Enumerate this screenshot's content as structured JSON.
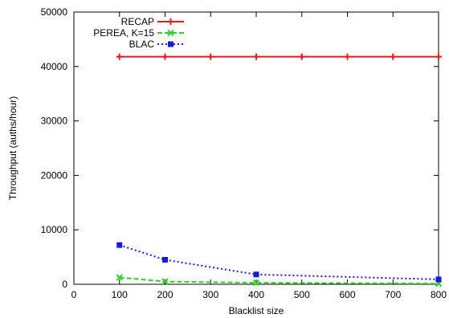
{
  "chart_data": {
    "type": "line",
    "title": "",
    "xlabel": "Blacklist size",
    "ylabel": "Throughput (auths/hour)",
    "xlim": [
      0,
      800
    ],
    "ylim": [
      0,
      50000
    ],
    "x_ticks": [
      0,
      100,
      200,
      300,
      400,
      500,
      600,
      700,
      800
    ],
    "y_ticks": [
      0,
      10000,
      20000,
      30000,
      40000,
      50000
    ],
    "grid": false,
    "legend_position": "top-left",
    "series": [
      {
        "name": "RECAP",
        "color": "#e41a1c",
        "line_style": "solid",
        "marker": "plus",
        "x": [
          100,
          200,
          300,
          400,
          500,
          600,
          700,
          800
        ],
        "y": [
          41800,
          41800,
          41800,
          41800,
          41800,
          41800,
          41800,
          41800
        ]
      },
      {
        "name": "PEREA, K=15",
        "color": "#33cc33",
        "line_style": "dashed",
        "marker": "x",
        "x": [
          100,
          200,
          400,
          800
        ],
        "y": [
          1250,
          500,
          280,
          130
        ]
      },
      {
        "name": "BLAC",
        "color": "#1a1adb",
        "line_style": "dotted",
        "marker": "square",
        "x": [
          100,
          200,
          400,
          800
        ],
        "y": [
          7200,
          4500,
          1800,
          900
        ]
      }
    ]
  }
}
